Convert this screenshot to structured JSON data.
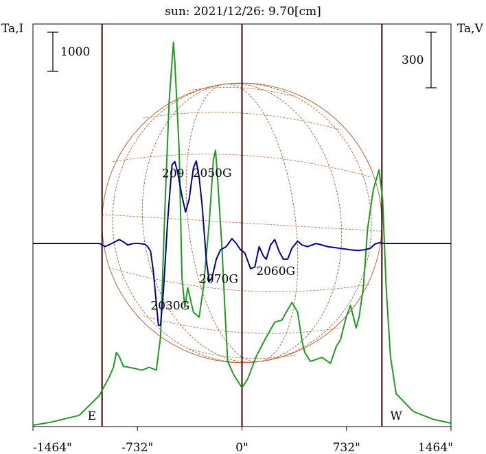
{
  "title": "sun: 2021/12/26: 9.70[cm]",
  "colors": {
    "title": "#000080",
    "limb_lines": "#3a0000",
    "disk_grid": "#b5653a",
    "intensity": "#1e9a1e",
    "polarization": "#000090",
    "axis": "#000000"
  },
  "chart_data": {
    "type": "line",
    "title": "sun: 2021/12/26: 9.70[cm]",
    "xlabel": "",
    "ylabel_left": "Ta,I",
    "ylabel_right": "Ta,V",
    "xlim": [
      -1464,
      1464
    ],
    "x_ticks": [
      -1464,
      -732,
      0,
      732,
      1464
    ],
    "x_tick_labels": [
      "-1464\"",
      "-732\"",
      "0\"",
      "732\"",
      "1464\""
    ],
    "limb_positions": [
      -980,
      0,
      980
    ],
    "limb_labels": [
      "E",
      "W"
    ],
    "scale_bar_I": "1000",
    "scale_bar_V": "300",
    "grid": false,
    "series": [
      {
        "key": "I",
        "points": [
          [
            -1464,
            0
          ],
          [
            -1340,
            30
          ],
          [
            -1140,
            100
          ],
          [
            -1000,
            300
          ],
          [
            -930,
            490
          ],
          [
            -900,
            590
          ],
          [
            -880,
            740
          ],
          [
            -860,
            700
          ],
          [
            -830,
            600
          ],
          [
            -760,
            580
          ],
          [
            -700,
            560
          ],
          [
            -650,
            590
          ],
          [
            -600,
            560
          ],
          [
            -570,
            900
          ],
          [
            -540,
            2200
          ],
          [
            -510,
            3300
          ],
          [
            -480,
            3900
          ],
          [
            -470,
            3700
          ],
          [
            -440,
            2800
          ],
          [
            -420,
            1500
          ],
          [
            -400,
            1200
          ],
          [
            -380,
            1400
          ],
          [
            -340,
            1150
          ],
          [
            -300,
            1100
          ],
          [
            -270,
            1400
          ],
          [
            -230,
            2050
          ],
          [
            -200,
            2700
          ],
          [
            -185,
            2800
          ],
          [
            -170,
            2500
          ],
          [
            -140,
            1800
          ],
          [
            -120,
            1200
          ],
          [
            -100,
            650
          ],
          [
            -60,
            520
          ],
          [
            0,
            380
          ],
          [
            40,
            470
          ],
          [
            100,
            700
          ],
          [
            160,
            870
          ],
          [
            230,
            1050
          ],
          [
            280,
            1070
          ],
          [
            310,
            1150
          ],
          [
            350,
            1250
          ],
          [
            390,
            1150
          ],
          [
            420,
            860
          ],
          [
            440,
            740
          ],
          [
            480,
            650
          ],
          [
            560,
            690
          ],
          [
            620,
            630
          ],
          [
            660,
            800
          ],
          [
            690,
            870
          ],
          [
            730,
            1100
          ],
          [
            760,
            1220
          ],
          [
            800,
            990
          ],
          [
            820,
            1100
          ],
          [
            850,
            1400
          ],
          [
            880,
            2000
          ],
          [
            920,
            2400
          ],
          [
            960,
            2600
          ],
          [
            985,
            2300
          ],
          [
            1010,
            1400
          ],
          [
            1040,
            700
          ],
          [
            1080,
            320
          ],
          [
            1200,
            140
          ],
          [
            1340,
            60
          ],
          [
            1464,
            20
          ]
        ]
      },
      {
        "key": "V",
        "points": [
          [
            -1464,
            0
          ],
          [
            -1100,
            0
          ],
          [
            -1000,
            0
          ],
          [
            -980,
            -8
          ],
          [
            -960,
            -20
          ],
          [
            -900,
            5
          ],
          [
            -860,
            25
          ],
          [
            -830,
            10
          ],
          [
            -800,
            -10
          ],
          [
            -760,
            0
          ],
          [
            -720,
            0
          ],
          [
            -680,
            -5
          ],
          [
            -660,
            -20
          ],
          [
            -640,
            -50
          ],
          [
            -620,
            -180
          ],
          [
            -600,
            -380
          ],
          [
            -585,
            -520
          ],
          [
            -570,
            -520
          ],
          [
            -550,
            -300
          ],
          [
            -520,
            150
          ],
          [
            -490,
            500
          ],
          [
            -470,
            520
          ],
          [
            -450,
            450
          ],
          [
            -420,
            300
          ],
          [
            -395,
            200
          ],
          [
            -370,
            280
          ],
          [
            -340,
            480
          ],
          [
            -320,
            525
          ],
          [
            -300,
            420
          ],
          [
            -280,
            250
          ],
          [
            -250,
            -100
          ],
          [
            -230,
            -240
          ],
          [
            -210,
            -220
          ],
          [
            -180,
            -100
          ],
          [
            -150,
            -40
          ],
          [
            -110,
            -20
          ],
          [
            -70,
            30
          ],
          [
            -40,
            0
          ],
          [
            -10,
            -40
          ],
          [
            20,
            -60
          ],
          [
            60,
            -160
          ],
          [
            90,
            -150
          ],
          [
            120,
            -20
          ],
          [
            150,
            -80
          ],
          [
            170,
            -100
          ],
          [
            200,
            -10
          ],
          [
            230,
            25
          ],
          [
            260,
            -50
          ],
          [
            290,
            -100
          ],
          [
            320,
            -100
          ],
          [
            350,
            -30
          ],
          [
            390,
            15
          ],
          [
            420,
            -10
          ],
          [
            460,
            -20
          ],
          [
            520,
            0
          ],
          [
            600,
            -20
          ],
          [
            680,
            -30
          ],
          [
            760,
            -40
          ],
          [
            810,
            -45
          ],
          [
            860,
            -40
          ],
          [
            900,
            -30
          ],
          [
            930,
            -5
          ],
          [
            960,
            5
          ],
          [
            1000,
            0
          ],
          [
            1100,
            0
          ],
          [
            1464,
            0
          ]
        ]
      }
    ]
  },
  "labels": [
    {
      "text": "209",
      "x": -560,
      "y_v": 420
    },
    {
      "text": "2050G",
      "x": -345,
      "y_v": 422
    },
    {
      "text": "2070G",
      "x": -300,
      "y_v": -250
    },
    {
      "text": "2060G",
      "x": 100,
      "y_v": -200
    },
    {
      "text": "2030G",
      "x": -640,
      "y_v": -420
    }
  ]
}
